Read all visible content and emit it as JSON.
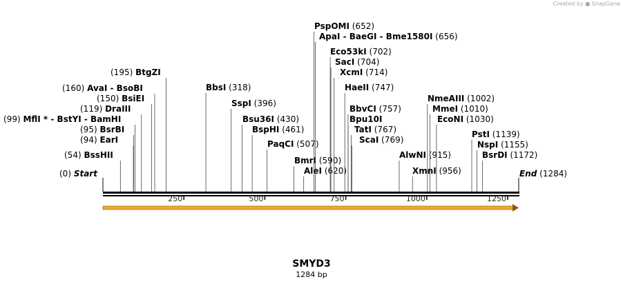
{
  "credit": {
    "prefix": "Created by",
    "brand": "SnapGene"
  },
  "construct": {
    "name": "SMYD3",
    "size_label": "1284 bp",
    "length": 1284
  },
  "ends": {
    "start_label": "Start",
    "start_pos": "(0)",
    "end_label": "End",
    "end_pos": "(1284)"
  },
  "axis": {
    "ticks": [
      250,
      500,
      750,
      1000,
      1250
    ],
    "tick_labels": [
      "250",
      "500",
      "750",
      "1000",
      "1250"
    ]
  },
  "feature": {
    "color": "#f0a830",
    "direction": "forward",
    "start": 0,
    "end": 1284
  },
  "sites": [
    {
      "name": "BssHII",
      "pos": 54,
      "pos_label": "(54)",
      "side": "left"
    },
    {
      "name": "EarI",
      "pos": 94,
      "pos_label": "(94)",
      "side": "left"
    },
    {
      "name": "BsrBI",
      "pos": 95,
      "pos_label": "(95)",
      "side": "left"
    },
    {
      "name": "MflI * - BstYI - BamHI",
      "pos": 99,
      "pos_label": "(99)",
      "side": "left"
    },
    {
      "name": "DraIII",
      "pos": 119,
      "pos_label": "(119)",
      "side": "left"
    },
    {
      "name": "BsiEI",
      "pos": 150,
      "pos_label": "(150)",
      "side": "left"
    },
    {
      "name": "AvaI - BsoBI",
      "pos": 160,
      "pos_label": "(160)",
      "side": "left"
    },
    {
      "name": "BtgZI",
      "pos": 195,
      "pos_label": "(195)",
      "side": "left"
    },
    {
      "name": "BbsI",
      "pos": 318,
      "pos_label": "(318)",
      "side": "right"
    },
    {
      "name": "SspI",
      "pos": 396,
      "pos_label": "(396)",
      "side": "right"
    },
    {
      "name": "Bsu36I",
      "pos": 430,
      "pos_label": "(430)",
      "side": "right"
    },
    {
      "name": "BspHI",
      "pos": 461,
      "pos_label": "(461)",
      "side": "right"
    },
    {
      "name": "PaqCI",
      "pos": 507,
      "pos_label": "(507)",
      "side": "right"
    },
    {
      "name": "BmrI",
      "pos": 590,
      "pos_label": "(590)",
      "side": "right"
    },
    {
      "name": "AleI",
      "pos": 620,
      "pos_label": "(620)",
      "side": "right"
    },
    {
      "name": "PspOMI",
      "pos": 652,
      "pos_label": "(652)",
      "side": "right"
    },
    {
      "name": "ApaI - BaeGI - Bme1580I",
      "pos": 656,
      "pos_label": "(656)",
      "side": "right"
    },
    {
      "name": "Eco53kI",
      "pos": 702,
      "pos_label": "(702)",
      "side": "right"
    },
    {
      "name": "SacI",
      "pos": 704,
      "pos_label": "(704)",
      "side": "right"
    },
    {
      "name": "XcmI",
      "pos": 714,
      "pos_label": "(714)",
      "side": "right"
    },
    {
      "name": "HaeII",
      "pos": 747,
      "pos_label": "(747)",
      "side": "right"
    },
    {
      "name": "BbvCI",
      "pos": 757,
      "pos_label": "(757)",
      "side": "right"
    },
    {
      "name": "Bpu10I",
      "pos": 757,
      "pos_label": "",
      "side": "right"
    },
    {
      "name": "TatI",
      "pos": 767,
      "pos_label": "(767)",
      "side": "right"
    },
    {
      "name": "ScaI",
      "pos": 769,
      "pos_label": "(769)",
      "side": "right"
    },
    {
      "name": "AlwNI",
      "pos": 915,
      "pos_label": "(915)",
      "side": "right"
    },
    {
      "name": "XmnI",
      "pos": 956,
      "pos_label": "(956)",
      "side": "right"
    },
    {
      "name": "NmeAIII",
      "pos": 1002,
      "pos_label": "(1002)",
      "side": "right"
    },
    {
      "name": "MmeI",
      "pos": 1010,
      "pos_label": "(1010)",
      "side": "right"
    },
    {
      "name": "EcoNI",
      "pos": 1030,
      "pos_label": "(1030)",
      "side": "right"
    },
    {
      "name": "PstI",
      "pos": 1139,
      "pos_label": "(1139)",
      "side": "right"
    },
    {
      "name": "NspI",
      "pos": 1155,
      "pos_label": "(1155)",
      "side": "right"
    },
    {
      "name": "BsrDI",
      "pos": 1172,
      "pos_label": "(1172)",
      "side": "right"
    }
  ]
}
